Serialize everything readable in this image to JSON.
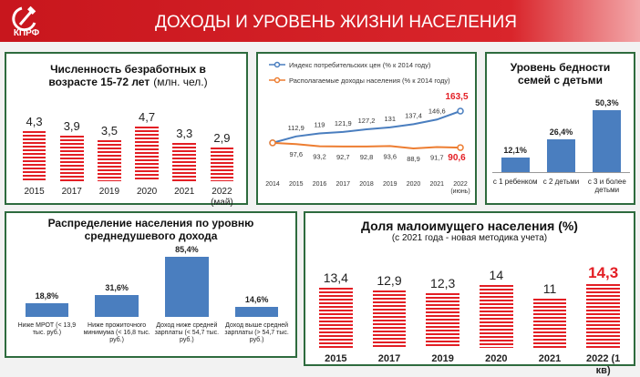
{
  "header": {
    "logo": "КПРФ",
    "title": "ДОХОДЫ И УРОВЕНЬ ЖИЗНИ НАСЕЛЕНИЯ"
  },
  "chart_data": [
    {
      "type": "bar",
      "title": "Численность безработных в возрасте 15-72 лет",
      "subtitle": "(млн. чел.)",
      "categories": [
        "2015",
        "2017",
        "2019",
        "2020",
        "2021",
        "2022 (май)"
      ],
      "values": [
        4.3,
        3.9,
        3.5,
        4.7,
        3.3,
        2.9
      ],
      "value_labels": [
        "4,3",
        "3,9",
        "3,5",
        "4,7",
        "3,3",
        "2,9"
      ],
      "color": "#e31e24",
      "pattern": "striped"
    },
    {
      "type": "line",
      "categories": [
        "2014",
        "2015",
        "2016",
        "2017",
        "2018",
        "2019",
        "2020",
        "2021",
        "2022 (июнь)"
      ],
      "series": [
        {
          "name": "Индекс потребительских цен (% к 2014 году)",
          "color": "#4a7ebf",
          "values": [
            100,
            112.9,
            119,
            121.9,
            127.2,
            131,
            137.4,
            146.6,
            163.5
          ],
          "value_labels": [
            null,
            "112,9",
            "119",
            "121,9",
            "127,2",
            "131",
            "137,4",
            "146,6",
            "163,5"
          ],
          "last_label_color": "#e31e24"
        },
        {
          "name": "Располагаемые доходы населения (% к 2014 году)",
          "color": "#ed7d31",
          "values": [
            100,
            97.6,
            93.2,
            92.7,
            92.8,
            93.6,
            88.9,
            91.7,
            90.6
          ],
          "value_labels": [
            null,
            "97,6",
            "93,2",
            "92,7",
            "92,8",
            "93,6",
            "88,9",
            "91,7",
            "90,6"
          ],
          "last_label_color": "#e31e24"
        }
      ]
    },
    {
      "type": "bar",
      "title": "Уровень бедности семей с детьми",
      "categories": [
        "с 1 ребенком",
        "с 2 детьми",
        "с 3 и более детьми"
      ],
      "values": [
        12.1,
        26.4,
        50.3
      ],
      "value_labels": [
        "12,1%",
        "26,4%",
        "50,3%"
      ],
      "color": "#4a7ebf",
      "pattern": "solid"
    },
    {
      "type": "bar",
      "title": "Распределение населения по уровню среднедушевого дохода",
      "categories": [
        "Ниже МРОТ (< 13,9 тыс. руб.)",
        "Ниже прожиточного минимума (< 16,8 тыс. руб.)",
        "Доход ниже средней зарплаты (< 54,7 тыс. руб.)",
        "Доход выше средней зарплаты (> 54,7 тыс. руб.)"
      ],
      "values": [
        18.8,
        31.6,
        85.4,
        14.6
      ],
      "value_labels": [
        "18,8%",
        "31,6%",
        "85,4%",
        "14,6%"
      ],
      "color": "#4a7ebf",
      "pattern": "solid"
    },
    {
      "type": "bar",
      "title": "Доля малоимущего населения (%)",
      "subtitle": "(с 2021 года - новая методика учета)",
      "categories": [
        "2015",
        "2017",
        "2019",
        "2020",
        "2021",
        "2022 (1 кв)"
      ],
      "values": [
        13.4,
        12.9,
        12.3,
        14,
        11,
        14.3
      ],
      "value_labels": [
        "13,4",
        "12,9",
        "12,3",
        "14",
        "11",
        "14,3"
      ],
      "color": "#e31e24",
      "pattern": "striped",
      "last_label_color": "#e31e24"
    }
  ]
}
